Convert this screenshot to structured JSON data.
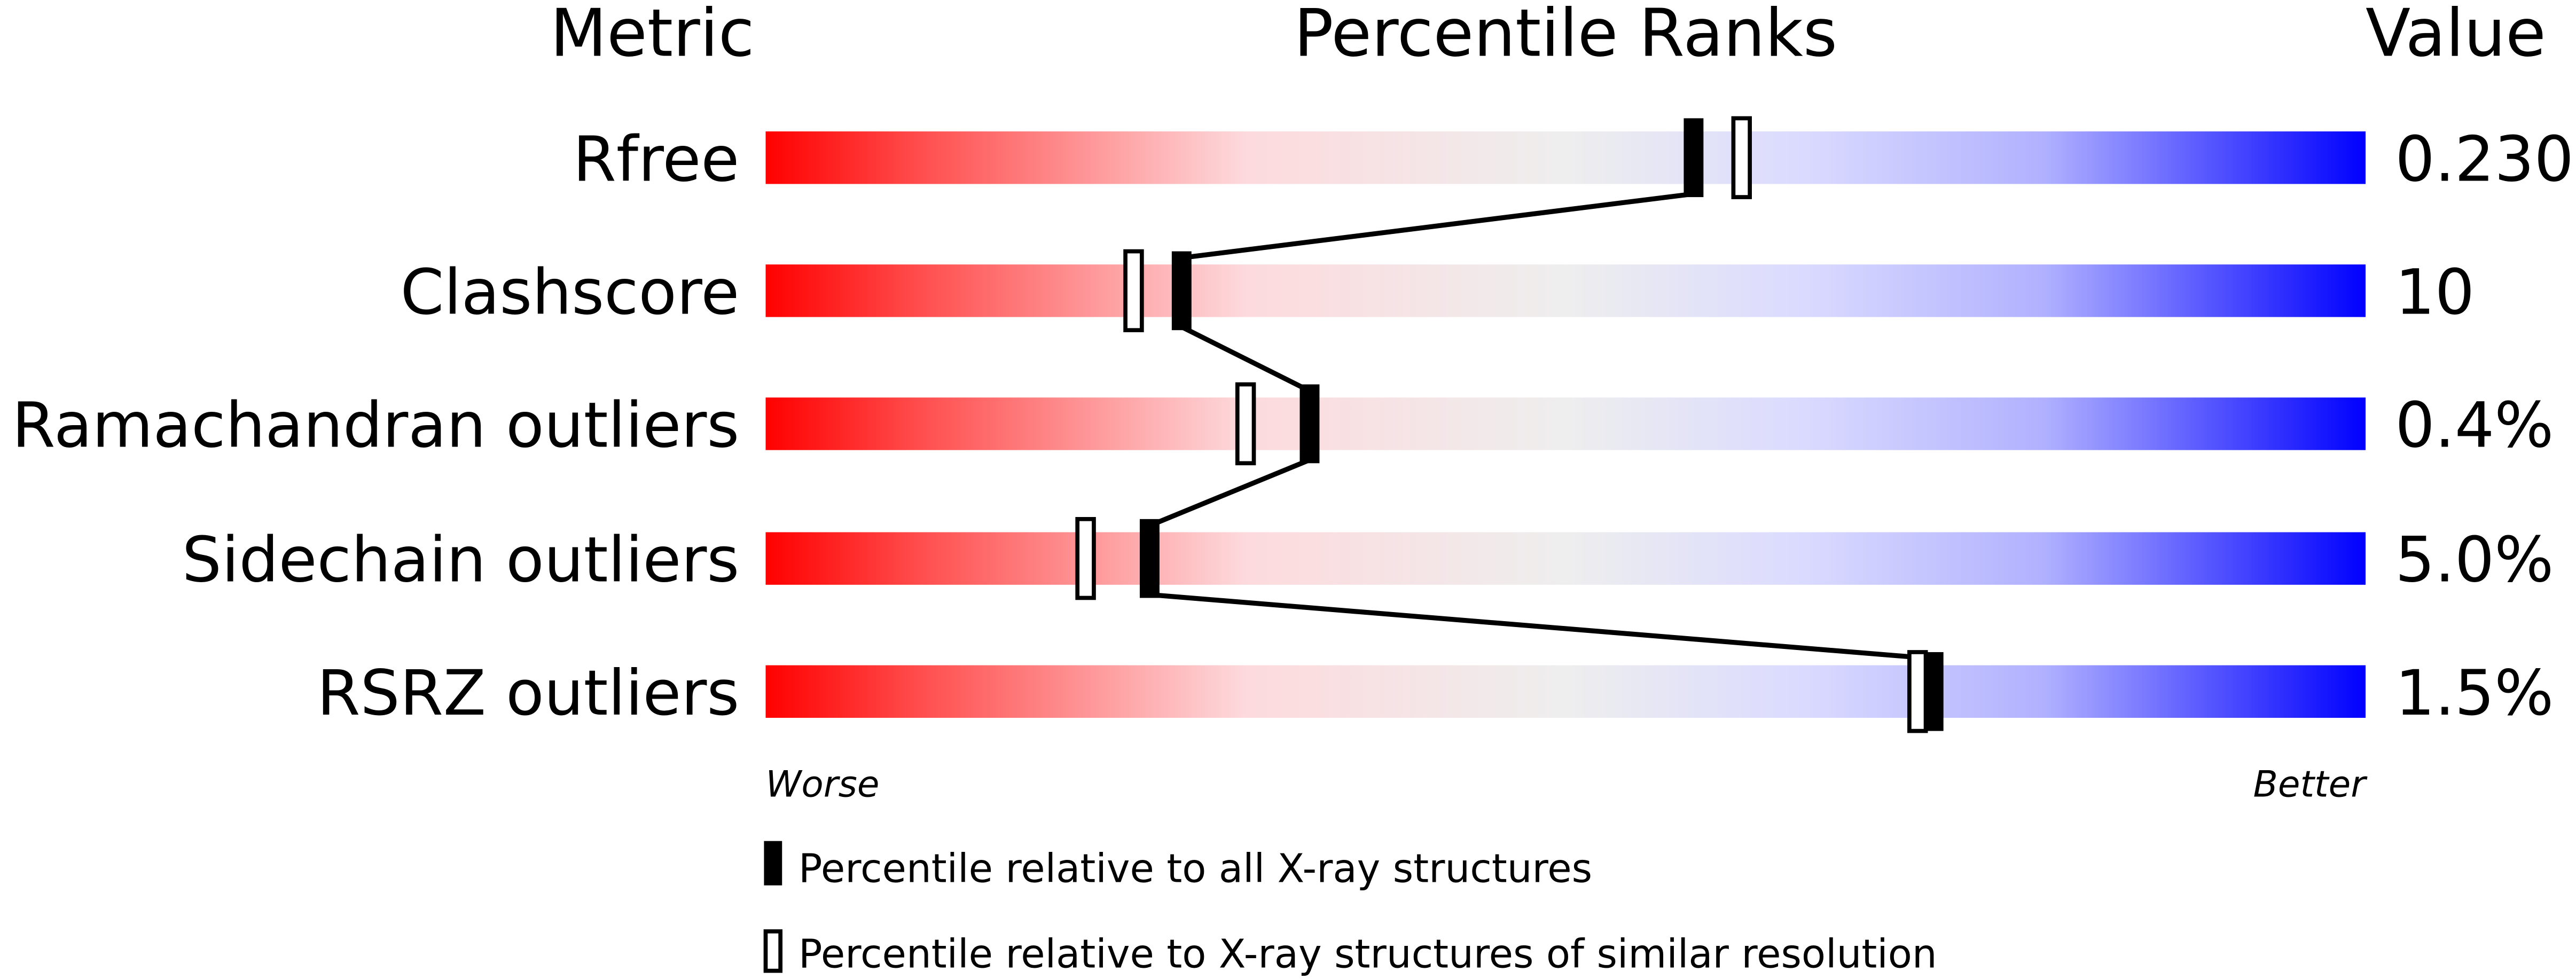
{
  "chart_data": {
    "type": "slider",
    "headers": {
      "metric": "Metric",
      "percentile": "Percentile Ranks",
      "value": "Value"
    },
    "axis": {
      "range": [
        0,
        100
      ],
      "worse_label": "Worse",
      "better_label": "Better"
    },
    "metrics": [
      {
        "name": "Rfree",
        "value": "0.230",
        "percentile_all": 58,
        "percentile_similar": 61
      },
      {
        "name": "Clashscore",
        "value": "10",
        "percentile_all": 26,
        "percentile_similar": 23
      },
      {
        "name": "Ramachandran outliers",
        "value": "0.4%",
        "percentile_all": 34,
        "percentile_similar": 30
      },
      {
        "name": "Sidechain outliers",
        "value": "5.0%",
        "percentile_all": 24,
        "percentile_similar": 20
      },
      {
        "name": "RSRZ outliers",
        "value": "1.5%",
        "percentile_all": 73,
        "percentile_similar": 72
      }
    ],
    "legend": {
      "filled": "Percentile relative to all X-ray structures",
      "open": "Percentile relative to X-ray structures of similar resolution"
    },
    "colors": {
      "worse": "#ff0000",
      "middle": "#eeeeee",
      "better": "#0000ff",
      "marker": "#000000"
    }
  }
}
